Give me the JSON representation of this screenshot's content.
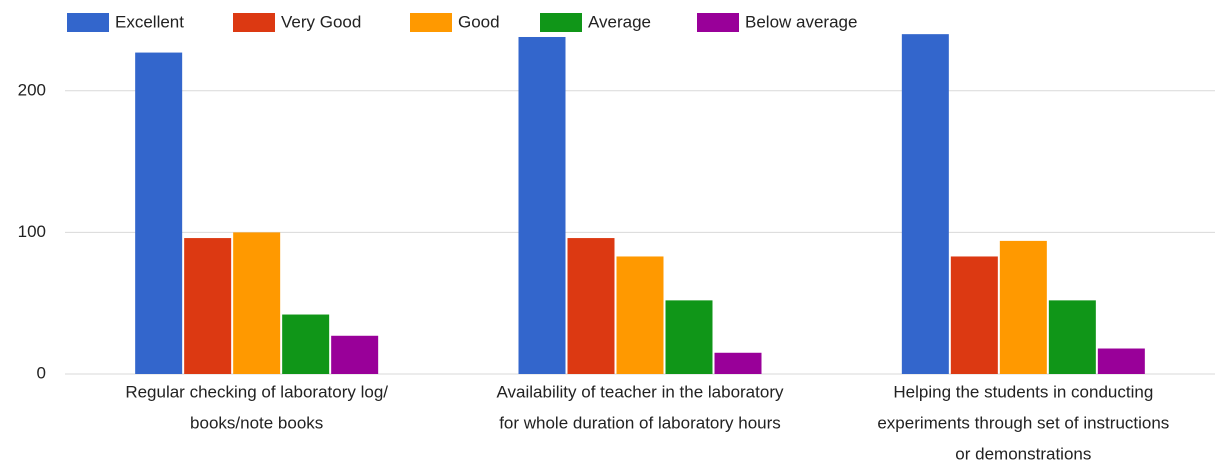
{
  "chart_data": {
    "type": "bar",
    "categories": [
      [
        "Regular checking of laboratory log/",
        "books/note books"
      ],
      [
        "Availability of teacher in the laboratory",
        "for whole duration of laboratory hours"
      ],
      [
        "Helping the students in conducting",
        "experiments through set of instructions",
        "or demonstrations"
      ]
    ],
    "series": [
      {
        "name": "Excellent",
        "color": "#3366cc",
        "values": [
          227,
          238,
          240
        ]
      },
      {
        "name": "Very Good",
        "color": "#dc3912",
        "values": [
          96,
          96,
          83
        ]
      },
      {
        "name": "Good",
        "color": "#ff9900",
        "values": [
          100,
          83,
          94
        ]
      },
      {
        "name": "Average",
        "color": "#109618",
        "values": [
          42,
          52,
          52
        ]
      },
      {
        "name": "Below average",
        "color": "#990099",
        "values": [
          27,
          15,
          18
        ]
      }
    ],
    "ylim": [
      0,
      250
    ],
    "yticks": [
      0,
      100,
      200
    ],
    "grid": true,
    "legend": "top"
  }
}
